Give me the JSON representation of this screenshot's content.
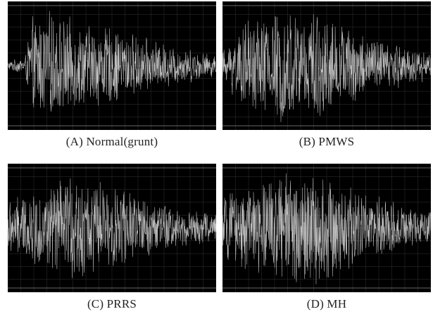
{
  "figure": {
    "captions": [
      "(A) Normal(grunt)",
      "(B) PMWS",
      "(C) PRRS",
      "(D) MH"
    ]
  },
  "colors": {
    "background": "#000000",
    "waveform": "#d8d8d8",
    "grid": "#2a2a2a",
    "border_line": "#8a8a8a"
  },
  "chart_data": [
    {
      "type": "line",
      "title": "(A) Normal(grunt)",
      "description_of_content": "audio waveform, amplitude vs time",
      "xlabel": "",
      "ylabel": "",
      "ylim": [
        -1,
        1
      ],
      "grid": true,
      "samples": 700,
      "envelope": {
        "x": [
          0.0,
          0.08,
          0.12,
          0.2,
          0.35,
          0.5,
          0.65,
          0.8,
          0.9,
          1.0
        ],
        "amplitude": [
          0.08,
          0.15,
          0.85,
          0.95,
          0.75,
          0.7,
          0.5,
          0.35,
          0.28,
          0.18
        ]
      }
    },
    {
      "type": "line",
      "title": "(B) PMWS",
      "description_of_content": "audio waveform, amplitude vs time",
      "xlabel": "",
      "ylabel": "",
      "ylim": [
        -1,
        1
      ],
      "grid": true,
      "samples": 700,
      "envelope": {
        "x": [
          0.0,
          0.05,
          0.15,
          0.3,
          0.45,
          0.6,
          0.75,
          0.9,
          1.0
        ],
        "amplitude": [
          0.25,
          0.55,
          0.9,
          1.0,
          0.95,
          0.7,
          0.5,
          0.35,
          0.25
        ]
      }
    },
    {
      "type": "line",
      "title": "(C) PRRS",
      "description_of_content": "audio waveform, amplitude vs time",
      "xlabel": "",
      "ylabel": "",
      "ylim": [
        -1,
        1
      ],
      "grid": true,
      "samples": 700,
      "envelope": {
        "x": [
          0.0,
          0.1,
          0.2,
          0.3,
          0.4,
          0.55,
          0.7,
          0.85,
          1.0
        ],
        "amplitude": [
          0.5,
          0.6,
          0.75,
          0.95,
          0.85,
          0.7,
          0.5,
          0.35,
          0.25
        ]
      }
    },
    {
      "type": "line",
      "title": "(D) MH",
      "description_of_content": "audio waveform, amplitude vs time",
      "xlabel": "",
      "ylabel": "",
      "ylim": [
        -1,
        1
      ],
      "grid": true,
      "samples": 700,
      "envelope": {
        "x": [
          0.0,
          0.1,
          0.2,
          0.3,
          0.45,
          0.6,
          0.75,
          0.9,
          1.0
        ],
        "amplitude": [
          0.55,
          0.7,
          0.9,
          1.0,
          1.0,
          0.75,
          0.55,
          0.4,
          0.3
        ]
      }
    }
  ]
}
